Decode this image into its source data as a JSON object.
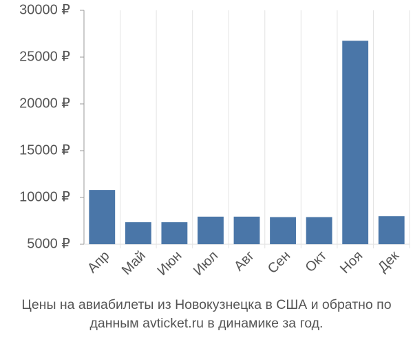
{
  "chart_data": {
    "type": "bar",
    "title": "Цены на авиабилеты из Новокузнецка в США и обратно по данным avticket.ru в динамике за год.",
    "categories": [
      "Апр",
      "Май",
      "Июн",
      "Июл",
      "Авг",
      "Сен",
      "Окт",
      "Ноя",
      "Дек"
    ],
    "values": [
      10800,
      7350,
      7350,
      7950,
      7950,
      7900,
      7900,
      26750,
      8000
    ],
    "color": "#4a76a8",
    "ylim": [
      5000,
      30000
    ],
    "yticks": [
      {
        "value": 5000,
        "label": "5000 ₽"
      },
      {
        "value": 10000,
        "label": "10000 ₽"
      },
      {
        "value": 15000,
        "label": "15000 ₽"
      },
      {
        "value": 20000,
        "label": "20000 ₽"
      },
      {
        "value": 25000,
        "label": "25000 ₽"
      },
      {
        "value": 30000,
        "label": "30000 ₽"
      }
    ]
  }
}
